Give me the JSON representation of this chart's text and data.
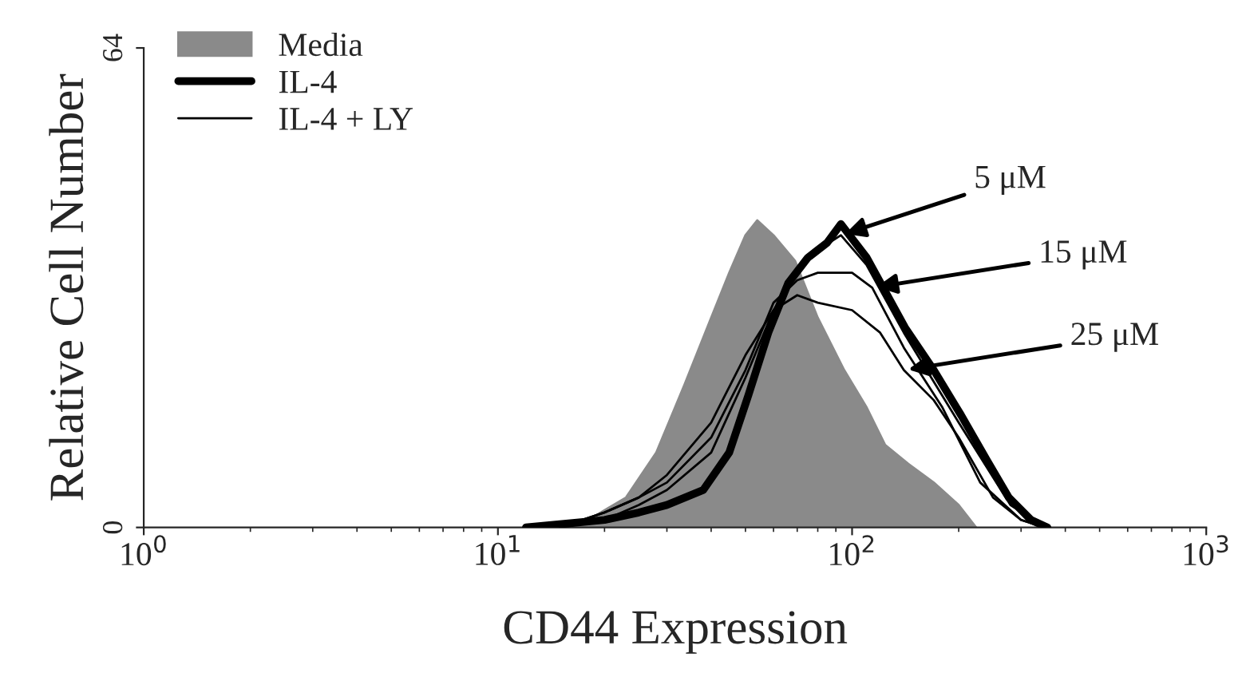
{
  "chart_data": {
    "type": "line",
    "xlabel": "CD44 Expression",
    "ylabel": "Relative Cell Number",
    "log": "x",
    "xlim": [
      1,
      1000
    ],
    "xticks": [
      {
        "value": 1,
        "label": "10$^{0}$"
      },
      {
        "value": 10,
        "label": "10$^{1}$"
      },
      {
        "value": 100,
        "label": "10$^{2}$"
      },
      {
        "value": 1000,
        "label": "10$^{3}$"
      }
    ],
    "ylim": [
      0,
      64
    ],
    "yticks": [
      0,
      64
    ],
    "legend": "top left",
    "grid": false,
    "series": [
      {
        "name": "Media",
        "type": "area",
        "color": "#8a8a8a",
        "x": [
          12,
          18,
          23,
          28,
          33.6,
          40,
          45,
          50,
          54,
          60,
          69,
          80,
          95,
          110,
          124,
          144,
          170,
          200,
          224
        ],
        "values": [
          0,
          1,
          4,
          10,
          19,
          28,
          34,
          39,
          41,
          39,
          35.6,
          28,
          21,
          16,
          11,
          8.5,
          6,
          3,
          0
        ]
      },
      {
        "name": "IL-4",
        "color": "#000000",
        "x": [
          12,
          20,
          25,
          30,
          38,
          45,
          51,
          58,
          66,
          75,
          85,
          93,
          110,
          141,
          170,
          203,
          240,
          277,
          320,
          356
        ],
        "values": [
          0,
          1,
          2,
          3,
          5,
          10,
          17.7,
          26,
          32.6,
          36,
          38,
          40.5,
          36,
          26.7,
          21,
          15,
          9,
          4,
          1,
          0
        ]
      },
      {
        "name": "IL-4 + LY",
        "color": "#000000",
        "x": [
          15,
          20,
          25,
          30,
          40,
          50,
          60,
          70,
          80,
          93,
          110,
          140,
          200,
          280,
          350
        ],
        "values": [
          0,
          1,
          3,
          5,
          10,
          20,
          29,
          34,
          37,
          39,
          35,
          26,
          14,
          3,
          0
        ]
      },
      {
        "color": "#000000",
        "x": [
          15,
          20,
          25,
          30,
          40,
          50,
          60,
          70,
          80,
          100,
          114,
          140,
          180,
          230,
          300,
          350
        ],
        "values": [
          0,
          2,
          4,
          6,
          12,
          21,
          30,
          33,
          34,
          34,
          32,
          24,
          16,
          6,
          1,
          0
        ]
      },
      {
        "color": "#000000",
        "x": [
          15,
          20,
          25,
          30,
          40,
          50,
          60,
          70,
          80,
          100,
          120,
          140,
          170,
          200,
          250,
          300,
          350
        ],
        "values": [
          0,
          2,
          4,
          7,
          14,
          23,
          29,
          31,
          30,
          29,
          26,
          21,
          17,
          12,
          4,
          1,
          0
        ]
      }
    ],
    "annotations": [
      {
        "text": "5 μM",
        "x": 93,
        "y": 39
      },
      {
        "text": "15 μM",
        "x": 114,
        "y": 32
      },
      {
        "text": "25 μM",
        "x": 140,
        "y": 21
      }
    ]
  }
}
